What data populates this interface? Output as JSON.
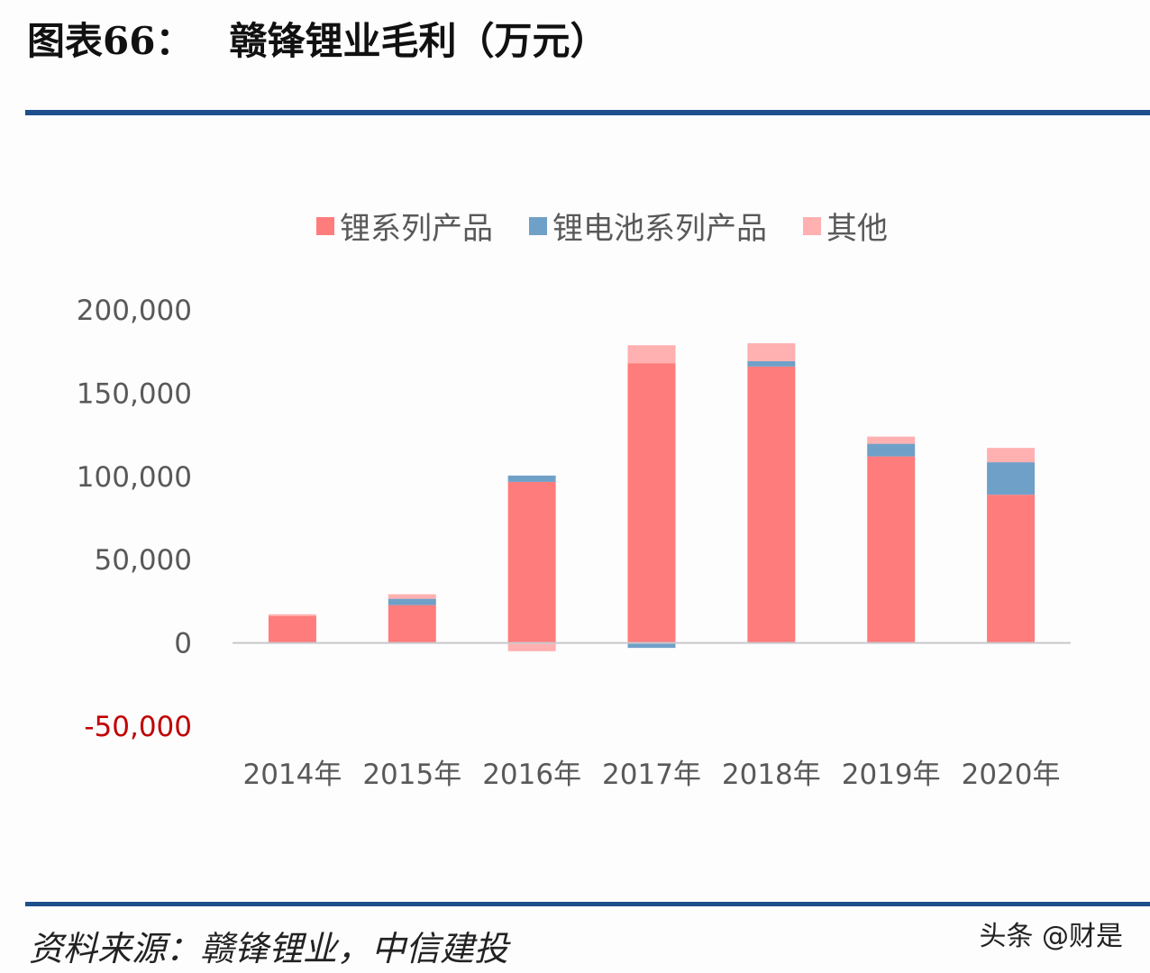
{
  "title": {
    "label": "图表66：",
    "text": "赣锋锂业毛利（万元）"
  },
  "source": "资料来源：赣锋锂业，中信建投",
  "watermark": "头条 @财是",
  "chart_data": {
    "type": "bar",
    "stacked": true,
    "title": "",
    "xlabel": "",
    "ylabel": "",
    "ylim": [
      -50000,
      200000
    ],
    "yticks": [
      {
        "v": 200000,
        "label": "200,000"
      },
      {
        "v": 150000,
        "label": "150,000"
      },
      {
        "v": 100000,
        "label": "100,000"
      },
      {
        "v": 50000,
        "label": "50,000"
      },
      {
        "v": 0,
        "label": "0"
      },
      {
        "v": -50000,
        "label": "-50,000"
      }
    ],
    "grid": false,
    "legend": "top",
    "categories": [
      "2014年",
      "2015年",
      "2016年",
      "2017年",
      "2018年",
      "2019年",
      "2020年"
    ],
    "series": [
      {
        "name": "锂系列产品",
        "color": "#FF7C7C",
        "values": [
          16200,
          22700,
          96700,
          168000,
          166000,
          112000,
          89000
        ]
      },
      {
        "name": "锂电池系列产品",
        "color": "#6FA0C8",
        "values": [
          0,
          3800,
          3800,
          -3000,
          3200,
          7600,
          19500
        ]
      },
      {
        "name": "其他",
        "color": "#FFB0B0",
        "values": [
          1000,
          2700,
          -5000,
          10800,
          10800,
          4300,
          8600
        ]
      }
    ],
    "negative_tick_color": "#C00000"
  }
}
